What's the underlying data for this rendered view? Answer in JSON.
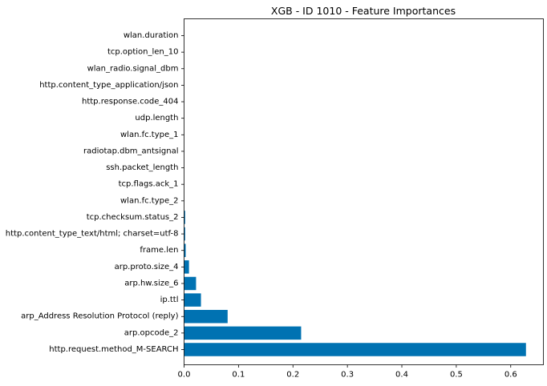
{
  "chart_data": {
    "type": "bar",
    "orientation": "horizontal",
    "title": "XGB - ID 1010 - Feature Importances",
    "xlabel": "",
    "ylabel": "",
    "xlim": [
      0,
      0.66
    ],
    "x_ticks": [
      0.0,
      0.1,
      0.2,
      0.3,
      0.4,
      0.5,
      0.6
    ],
    "x_tick_labels": [
      "0.0",
      "0.1",
      "0.2",
      "0.3",
      "0.4",
      "0.5",
      "0.6"
    ],
    "bar_color": "#0072b2",
    "grid": false,
    "categories": [
      "wlan.duration",
      "tcp.option_len_10",
      "wlan_radio.signal_dbm",
      "http.content_type_application/json",
      "http.response.code_404",
      "udp.length",
      "wlan.fc.type_1",
      "radiotap.dbm_antsignal",
      "ssh.packet_length",
      "tcp.flags.ack_1",
      "wlan.fc.type_2",
      "tcp.checksum.status_2",
      "http.content_type_text/html; charset=utf-8",
      "frame.len",
      "arp.proto.size_4",
      "arp.hw.size_6",
      "ip.ttl",
      "arp_Address Resolution Protocol (reply)",
      "arp.opcode_2",
      "http.request.method_M-SEARCH"
    ],
    "values": [
      0.0,
      0.0,
      0.0,
      0.0,
      0.0,
      0.0,
      0.0,
      0.0,
      0.0,
      0.0,
      0.0,
      0.002,
      0.002,
      0.003,
      0.009,
      0.022,
      0.031,
      0.08,
      0.215,
      0.628
    ]
  }
}
